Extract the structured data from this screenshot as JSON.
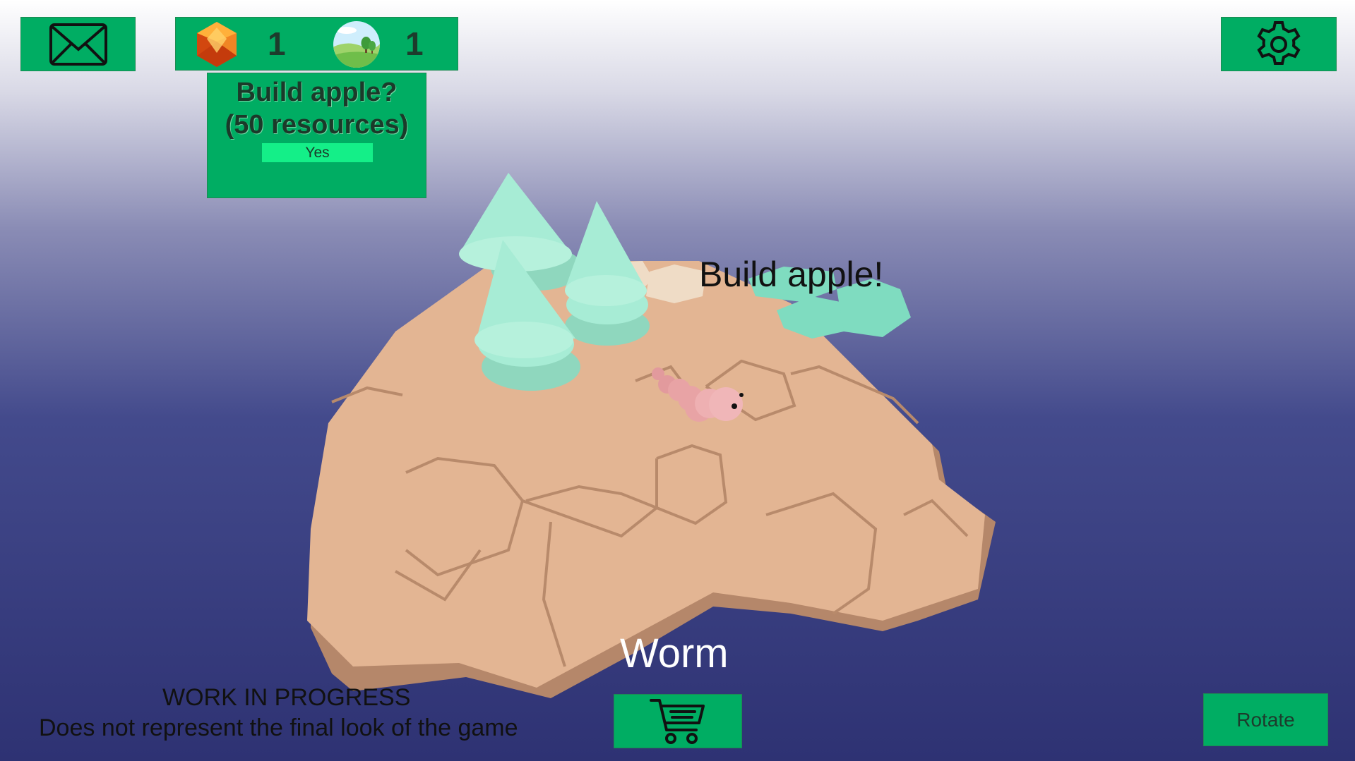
{
  "hud": {
    "mail_icon": "envelope-icon",
    "settings_icon": "gear-icon",
    "resources": {
      "gem": {
        "icon": "gem-icon",
        "count": "1"
      },
      "land": {
        "icon": "landscape-icon",
        "count": "1"
      }
    }
  },
  "build_prompt": {
    "title_line1": "Build apple?",
    "title_line2": "(50 resources)",
    "yes_label": "Yes"
  },
  "scene": {
    "floating_label": "Build apple!",
    "selected_unit": "Worm"
  },
  "footer": {
    "wip_line1": "WORK IN PROGRESS",
    "wip_line2": "Does not represent the final look of the game",
    "shop_icon": "shopping-cart-icon",
    "rotate_label": "Rotate"
  },
  "colors": {
    "panel": "#00ad63",
    "yes_button": "#14ef88",
    "tile_sand": "#e3b593",
    "tile_teal": "#7fdcc0",
    "tree": "#a7ecd5",
    "worm": "#e8a3a5"
  }
}
